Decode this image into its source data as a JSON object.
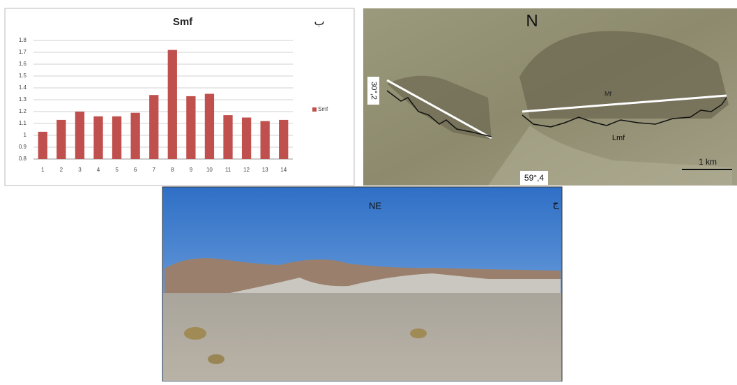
{
  "chart_data": {
    "type": "bar",
    "title": "Smf",
    "panel_label": "ب",
    "categories": [
      "1",
      "2",
      "3",
      "4",
      "5",
      "6",
      "7",
      "8",
      "9",
      "10",
      "11",
      "12",
      "13",
      "14"
    ],
    "series": [
      {
        "name": "Smf",
        "color": "#c0504d",
        "values": [
          1.03,
          1.13,
          1.2,
          1.16,
          1.16,
          1.19,
          1.34,
          1.72,
          1.33,
          1.35,
          1.17,
          1.15,
          1.12,
          1.13
        ]
      }
    ],
    "ylim": [
      0.8,
      1.8
    ],
    "yticks": [
      0.8,
      0.9,
      1,
      1.1,
      1.2,
      1.3,
      1.4,
      1.5,
      1.6,
      1.7,
      1.8
    ],
    "grid": true,
    "legend": "right"
  },
  "map": {
    "north": "N",
    "lat": "30°,2",
    "lon": "59°,4",
    "mf": "Mf",
    "lmf": "Lmf",
    "scale": "1 km"
  },
  "photo": {
    "direction": "NE",
    "panel_label": "ج"
  }
}
